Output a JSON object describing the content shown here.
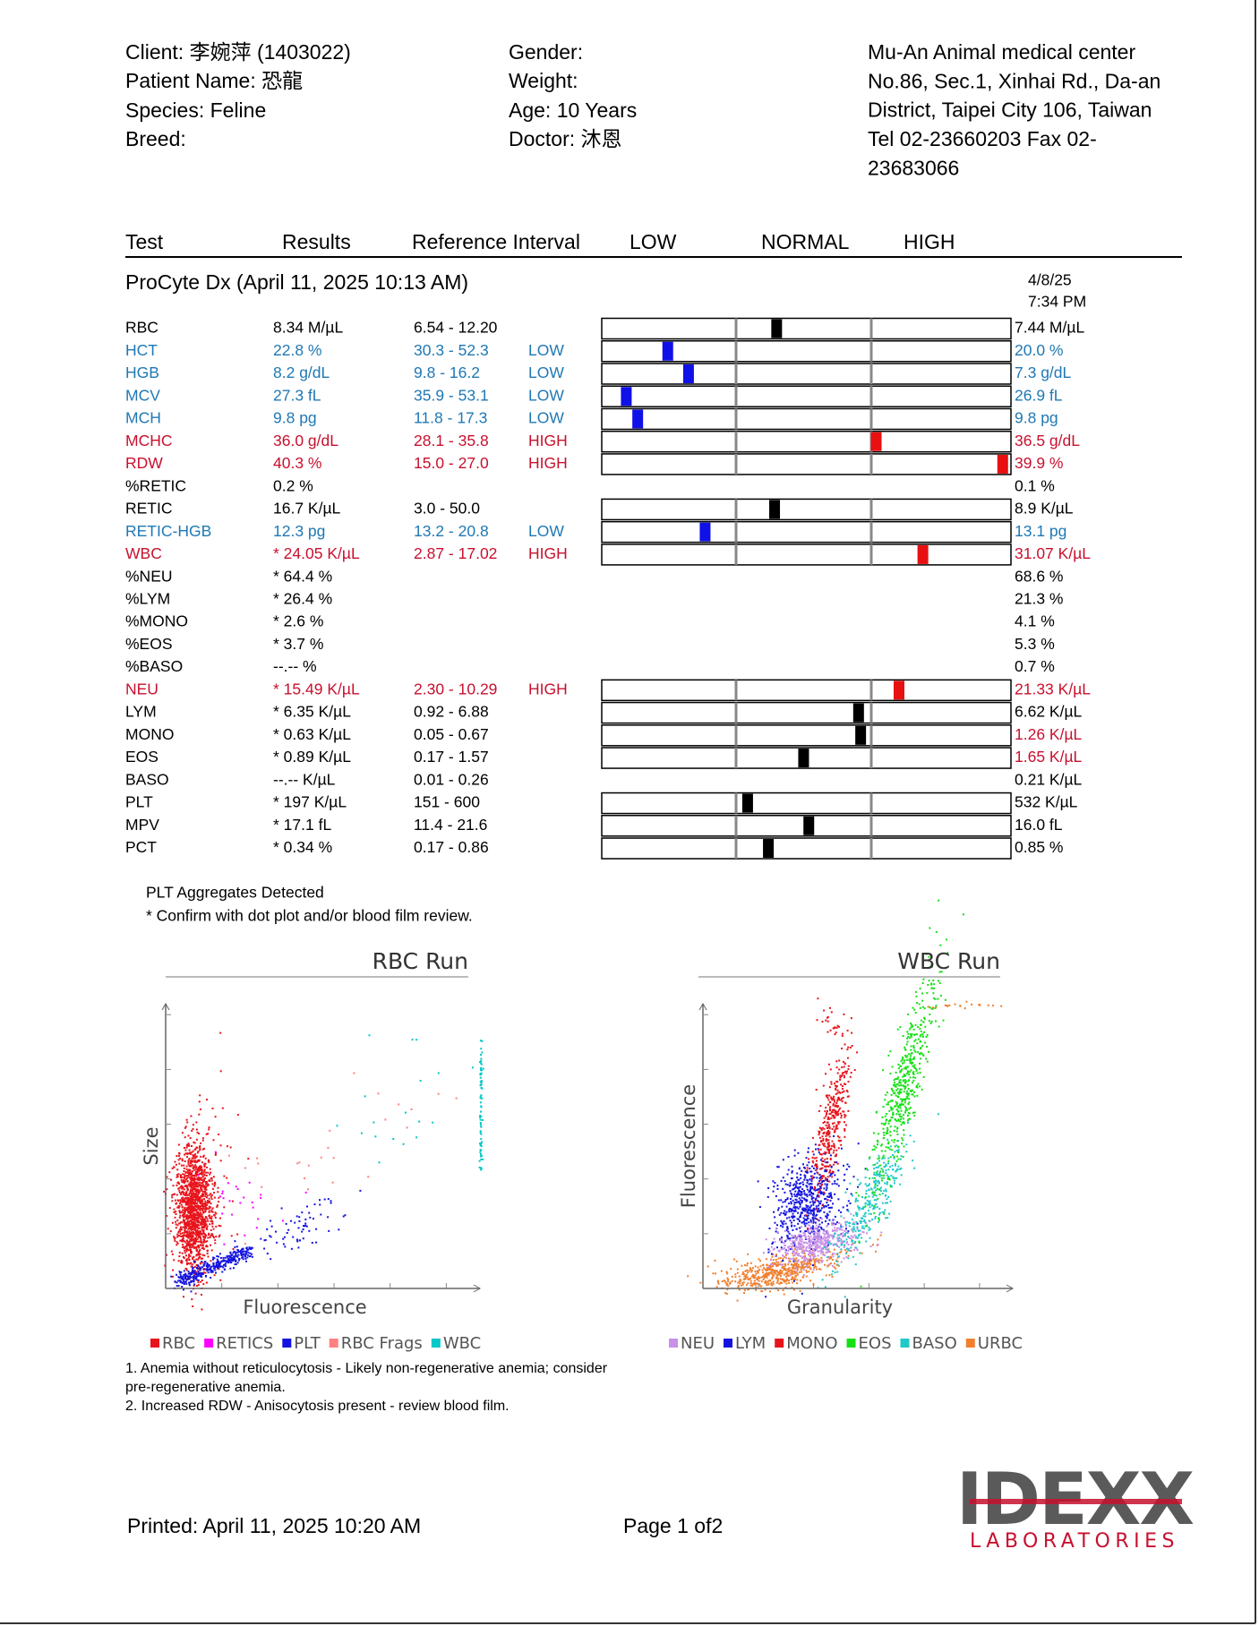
{
  "header": {
    "client": "Client: 李婉萍 (1403022)",
    "patient": "Patient Name: 恐龍",
    "species": "Species: Feline",
    "breed": "Breed:",
    "gender": "Gender:",
    "weight": "Weight:",
    "age": "Age: 10 Years",
    "doctor": "Doctor: 沐恩",
    "clinic": [
      "Mu-An Animal medical center",
      "No.86, Sec.1, Xinhai Rd., Da-an",
      "District, Taipei City 106, Taiwan",
      "Tel 02-23660203  Fax 02-",
      "23683066"
    ]
  },
  "table": {
    "columns": [
      "Test",
      "Results",
      "Reference Interval",
      "LOW",
      "NORMAL",
      "HIGH"
    ],
    "run": "ProCyte Dx (April 11, 2025 10:13 AM)",
    "previous_date": "4/8/25",
    "previous_time": "7:34 PM",
    "rows": [
      {
        "test": "RBC",
        "result": "8.34 M/µL",
        "reference": "6.54 - 12.20",
        "previous": "7.44 M/µL"
      },
      {
        "test": "HCT",
        "result": "22.8 %",
        "reference": "30.3 - 52.3",
        "flag": "LOW",
        "previous": "20.0 %",
        "color": "blue",
        "previous_color": "blue"
      },
      {
        "test": "HGB",
        "result": "8.2 g/dL",
        "reference": "9.8 - 16.2",
        "flag": "LOW",
        "previous": "7.3 g/dL",
        "color": "blue",
        "previous_color": "blue"
      },
      {
        "test": "MCV",
        "result": "27.3 fL",
        "reference": "35.9 - 53.1",
        "flag": "LOW",
        "previous": "26.9 fL",
        "color": "blue",
        "previous_color": "blue"
      },
      {
        "test": "MCH",
        "result": "9.8 pg",
        "reference": "11.8 - 17.3",
        "flag": "LOW",
        "previous": "9.8 pg",
        "color": "blue",
        "previous_color": "blue"
      },
      {
        "test": "MCHC",
        "result": "36.0 g/dL",
        "reference": "28.1 - 35.8",
        "flag": "HIGH",
        "previous": "36.5 g/dL",
        "color": "red",
        "previous_color": "red"
      },
      {
        "test": "RDW",
        "result": "40.3 %",
        "reference": "15.0 - 27.0",
        "flag": "HIGH",
        "previous": "39.9 %",
        "color": "red",
        "previous_color": "red"
      },
      {
        "test": "%RETIC",
        "result": "0.2 %",
        "previous": "0.1 %"
      },
      {
        "test": "RETIC",
        "result": "16.7 K/µL",
        "reference": "3.0 - 50.0",
        "previous": "8.9 K/µL"
      },
      {
        "test": "RETIC-HGB",
        "result": "12.3 pg",
        "reference": "13.2 - 20.8",
        "flag": "LOW",
        "previous": "13.1 pg",
        "color": "blue",
        "previous_color": "blue"
      },
      {
        "test": "WBC",
        "result": "* 24.05 K/µL",
        "reference": "2.87 - 17.02",
        "flag": "HIGH",
        "previous": "31.07 K/µL",
        "color": "red",
        "previous_color": "red"
      },
      {
        "test": "%NEU",
        "result": "* 64.4 %",
        "previous": "68.6 %"
      },
      {
        "test": "%LYM",
        "result": "* 26.4 %",
        "previous": "21.3 %"
      },
      {
        "test": "%MONO",
        "result": "* 2.6 %",
        "previous": "4.1 %"
      },
      {
        "test": "%EOS",
        "result": "* 3.7 %",
        "previous": "5.3 %"
      },
      {
        "test": "%BASO",
        "result": "--.--  %",
        "previous": "0.7 %"
      },
      {
        "test": "NEU",
        "result": "* 15.49 K/µL",
        "reference": "2.30 - 10.29",
        "flag": "HIGH",
        "previous": "21.33 K/µL",
        "color": "red",
        "previous_color": "red"
      },
      {
        "test": "LYM",
        "result": "* 6.35 K/µL",
        "reference": "0.92 - 6.88",
        "previous": "6.62 K/µL"
      },
      {
        "test": "MONO",
        "result": "* 0.63 K/µL",
        "reference": "0.05 - 0.67",
        "previous": "1.26 K/µL",
        "previous_color": "red"
      },
      {
        "test": "EOS",
        "result": "* 0.89 K/µL",
        "reference": "0.17 - 1.57",
        "previous": "1.65 K/µL",
        "previous_color": "red"
      },
      {
        "test": "BASO",
        "result": "--.--  K/µL",
        "reference": "0.01 - 0.26",
        "previous": "0.21 K/µL"
      },
      {
        "test": "PLT",
        "result": "* 197 K/µL",
        "reference": "151 - 600",
        "previous": "532 K/µL"
      },
      {
        "test": "MPV",
        "result": "* 17.1 fL",
        "reference": "11.4 - 21.6",
        "previous": "16.0 fL"
      },
      {
        "test": "PCT",
        "result": "* 0.34 %",
        "reference": "0.17 - 0.86",
        "previous": "0.85 %"
      }
    ]
  },
  "notes": [
    "PLT Aggregates Detected",
    "* Confirm with dot plot and/or blood film review."
  ],
  "charts": [
    {
      "title": "RBC Run",
      "x_label": "Fluorescence",
      "y_label": "Size",
      "legend": [
        {
          "name": "RBC",
          "color": "#e8141c"
        },
        {
          "name": "RETICS",
          "color": "#ff00ff"
        },
        {
          "name": "PLT",
          "color": "#1414e0"
        },
        {
          "name": "RBC Frags",
          "color": "#ff8080"
        },
        {
          "name": "WBC",
          "color": "#00c8c8"
        }
      ]
    },
    {
      "title": "WBC Run",
      "x_label": "Granularity",
      "y_label": "Fluorescence",
      "legend": [
        {
          "name": "NEU",
          "color": "#c890e8"
        },
        {
          "name": "LYM",
          "color": "#1414e0"
        },
        {
          "name": "MONO",
          "color": "#e8141c"
        },
        {
          "name": "EOS",
          "color": "#14e014"
        },
        {
          "name": "BASO",
          "color": "#20c8c8"
        },
        {
          "name": "URBC",
          "color": "#f08030"
        }
      ]
    }
  ],
  "comments": [
    "1. Anemia without reticulocytosis - Likely non-regenerative anemia; consider",
    "pre-regenerative anemia.",
    "2. Increased RDW - Anisocytosis present - review blood film."
  ],
  "footer": {
    "printed": "Printed: April 11, 2025 10:20 AM",
    "page": "Page 1 of2"
  },
  "logo": {
    "name": "IDEXX",
    "sub": "LABORATORIES"
  }
}
